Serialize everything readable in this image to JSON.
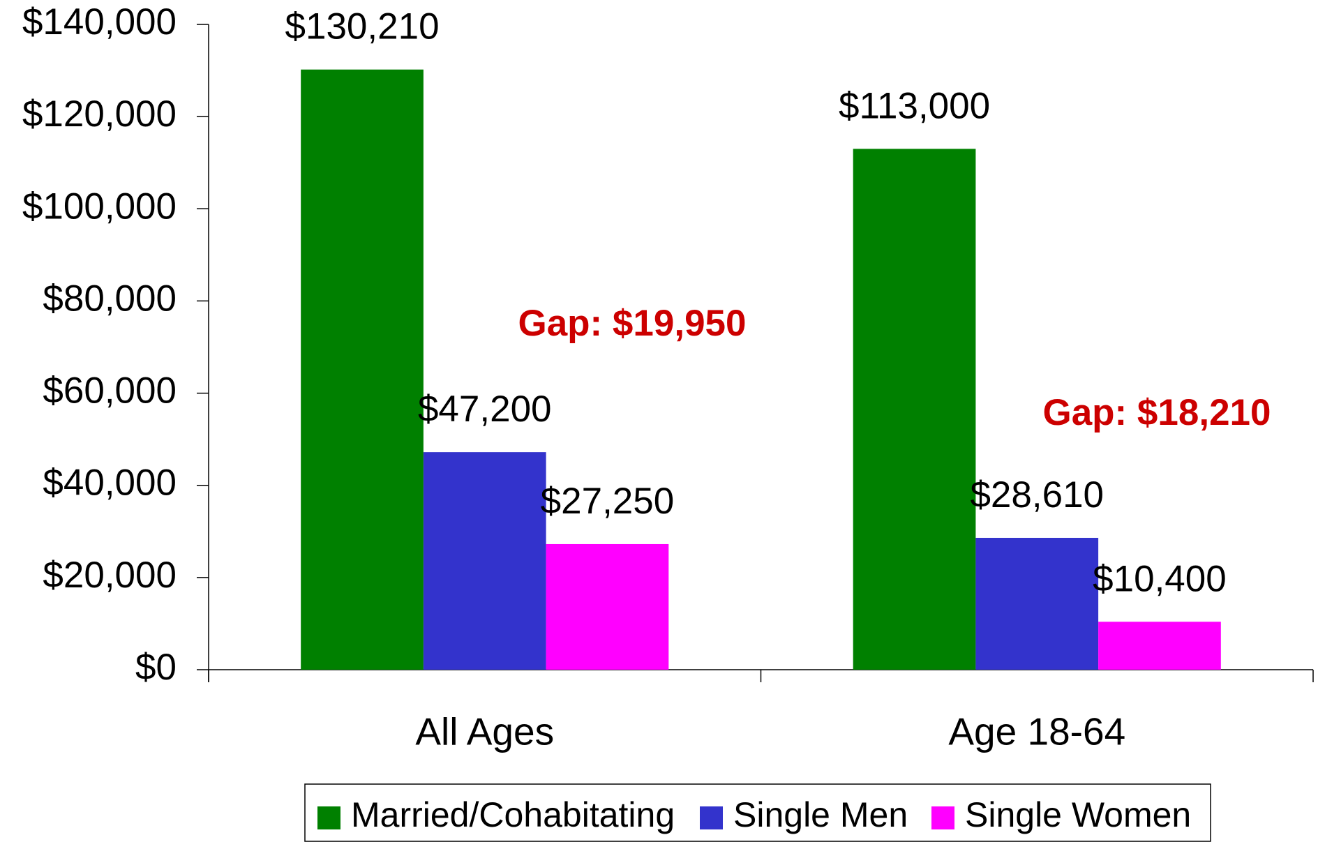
{
  "chart_data": {
    "type": "bar",
    "categories": [
      "All Ages",
      "Age 18-64"
    ],
    "series": [
      {
        "name": "Married/Cohabitating",
        "color": "#008000",
        "values": [
          130210,
          113000
        ],
        "value_labels": [
          "$130,210",
          "$113,000"
        ]
      },
      {
        "name": "Single Men",
        "color": "#3333cc",
        "values": [
          47200,
          28610
        ],
        "value_labels": [
          "$47,200",
          "$28,610"
        ]
      },
      {
        "name": "Single Women",
        "color": "#ff00ff",
        "values": [
          27250,
          10400
        ],
        "value_labels": [
          "$27,250",
          "$10,400"
        ]
      }
    ],
    "annotations": [
      "Gap: $19,950",
      "Gap: $18,210"
    ],
    "ylim": [
      0,
      140000
    ],
    "yticks": [
      {
        "value": 0,
        "label": "$0"
      },
      {
        "value": 20000,
        "label": "$20,000"
      },
      {
        "value": 40000,
        "label": "$40,000"
      },
      {
        "value": 60000,
        "label": "$60,000"
      },
      {
        "value": 80000,
        "label": "$80,000"
      },
      {
        "value": 100000,
        "label": "$100,000"
      },
      {
        "value": 120000,
        "label": "$120,000"
      },
      {
        "value": 140000,
        "label": "$140,000"
      }
    ],
    "grid": false,
    "legend": "bottom"
  }
}
